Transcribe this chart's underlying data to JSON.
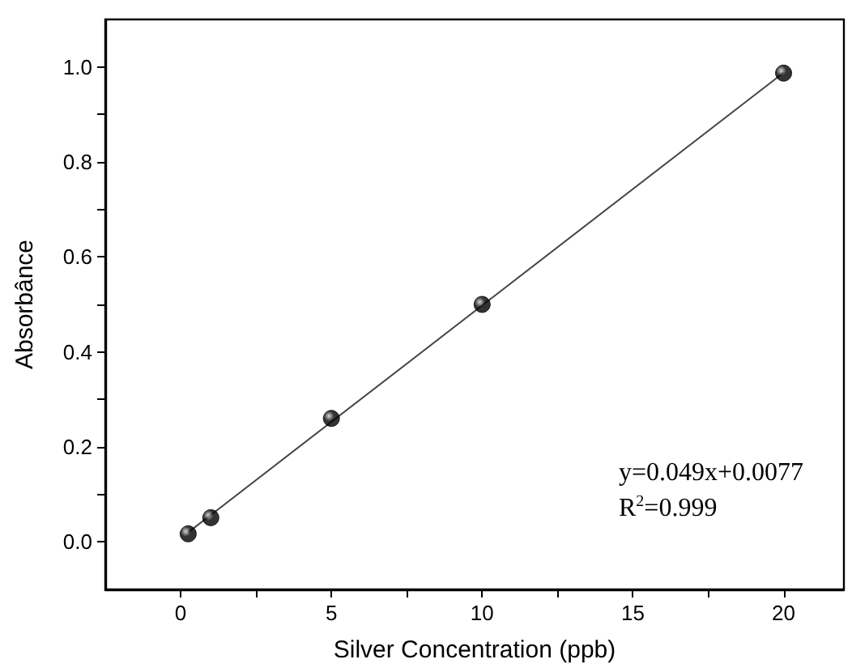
{
  "chart_data": {
    "type": "scatter",
    "xlabel": "Silver Concentration (ppb)",
    "ylabel": "Absorbânce",
    "xlim": [
      -2.5,
      22
    ],
    "xticks": [
      0,
      {
        "value": 2.5,
        "label": null
      },
      5,
      {
        "value": 7.5,
        "label": null
      },
      10,
      {
        "value": 12.5,
        "label": null
      },
      15,
      {
        "value": 17.5,
        "label": null
      },
      20
    ],
    "ylim": [
      -0.1,
      1.1
    ],
    "yticks": [
      {
        "value": 0,
        "label": "0.0"
      },
      {
        "value": 0.1,
        "label": null
      },
      {
        "value": 0.2,
        "label": "0.2"
      },
      {
        "value": 0.3,
        "label": null
      },
      {
        "value": 0.4,
        "label": "0.4"
      },
      {
        "value": 0.5,
        "label": null
      },
      {
        "value": 0.6,
        "label": "0.6"
      },
      {
        "value": 0.7,
        "label": null
      },
      {
        "value": 0.8,
        "label": "0.8"
      },
      {
        "value": 0.9,
        "label": null
      },
      {
        "value": 1.0,
        "label": "1.0"
      }
    ],
    "grid": false,
    "series": [
      {
        "type": "line",
        "color": "#444444",
        "marker": "none",
        "line_style": "solid",
        "x": [
          0.25,
          20
        ],
        "values": [
          0.02,
          0.988
        ]
      },
      {
        "color": "#000000",
        "marker": "circle",
        "x": [
          0.25,
          1,
          5,
          10,
          20
        ],
        "values": [
          0.017,
          0.051,
          0.26,
          0.5,
          0.987
        ]
      }
    ],
    "annotations": [
      "y=0.049x+0.0077",
      "R$^{2}$=0.999"
    ]
  }
}
